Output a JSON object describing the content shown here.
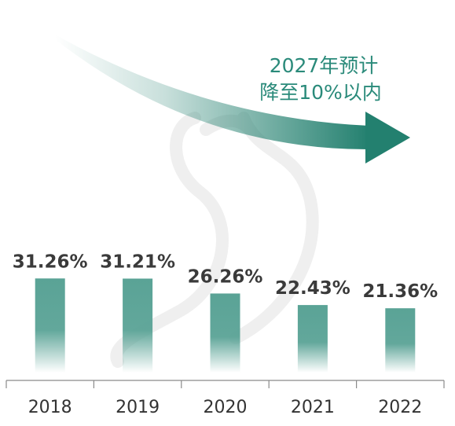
{
  "chart_data": {
    "type": "bar",
    "categories": [
      "2018",
      "2019",
      "2020",
      "2021",
      "2022"
    ],
    "values": [
      31.26,
      31.21,
      26.26,
      22.43,
      21.36
    ],
    "value_labels": [
      "31.26%",
      "31.21%",
      "26.26%",
      "22.43%",
      "21.36%"
    ],
    "annotation": {
      "line1": "2027年预计",
      "line2": "降至10%以内"
    },
    "title": "",
    "xlabel": "",
    "ylabel": "",
    "ylim": [
      0,
      40
    ],
    "grid": false,
    "legend": "none"
  },
  "colors": {
    "bar": "#5aa396",
    "arrow": "#23806f",
    "axis": "#8a8a8a",
    "watermark": "#eeeeee"
  }
}
